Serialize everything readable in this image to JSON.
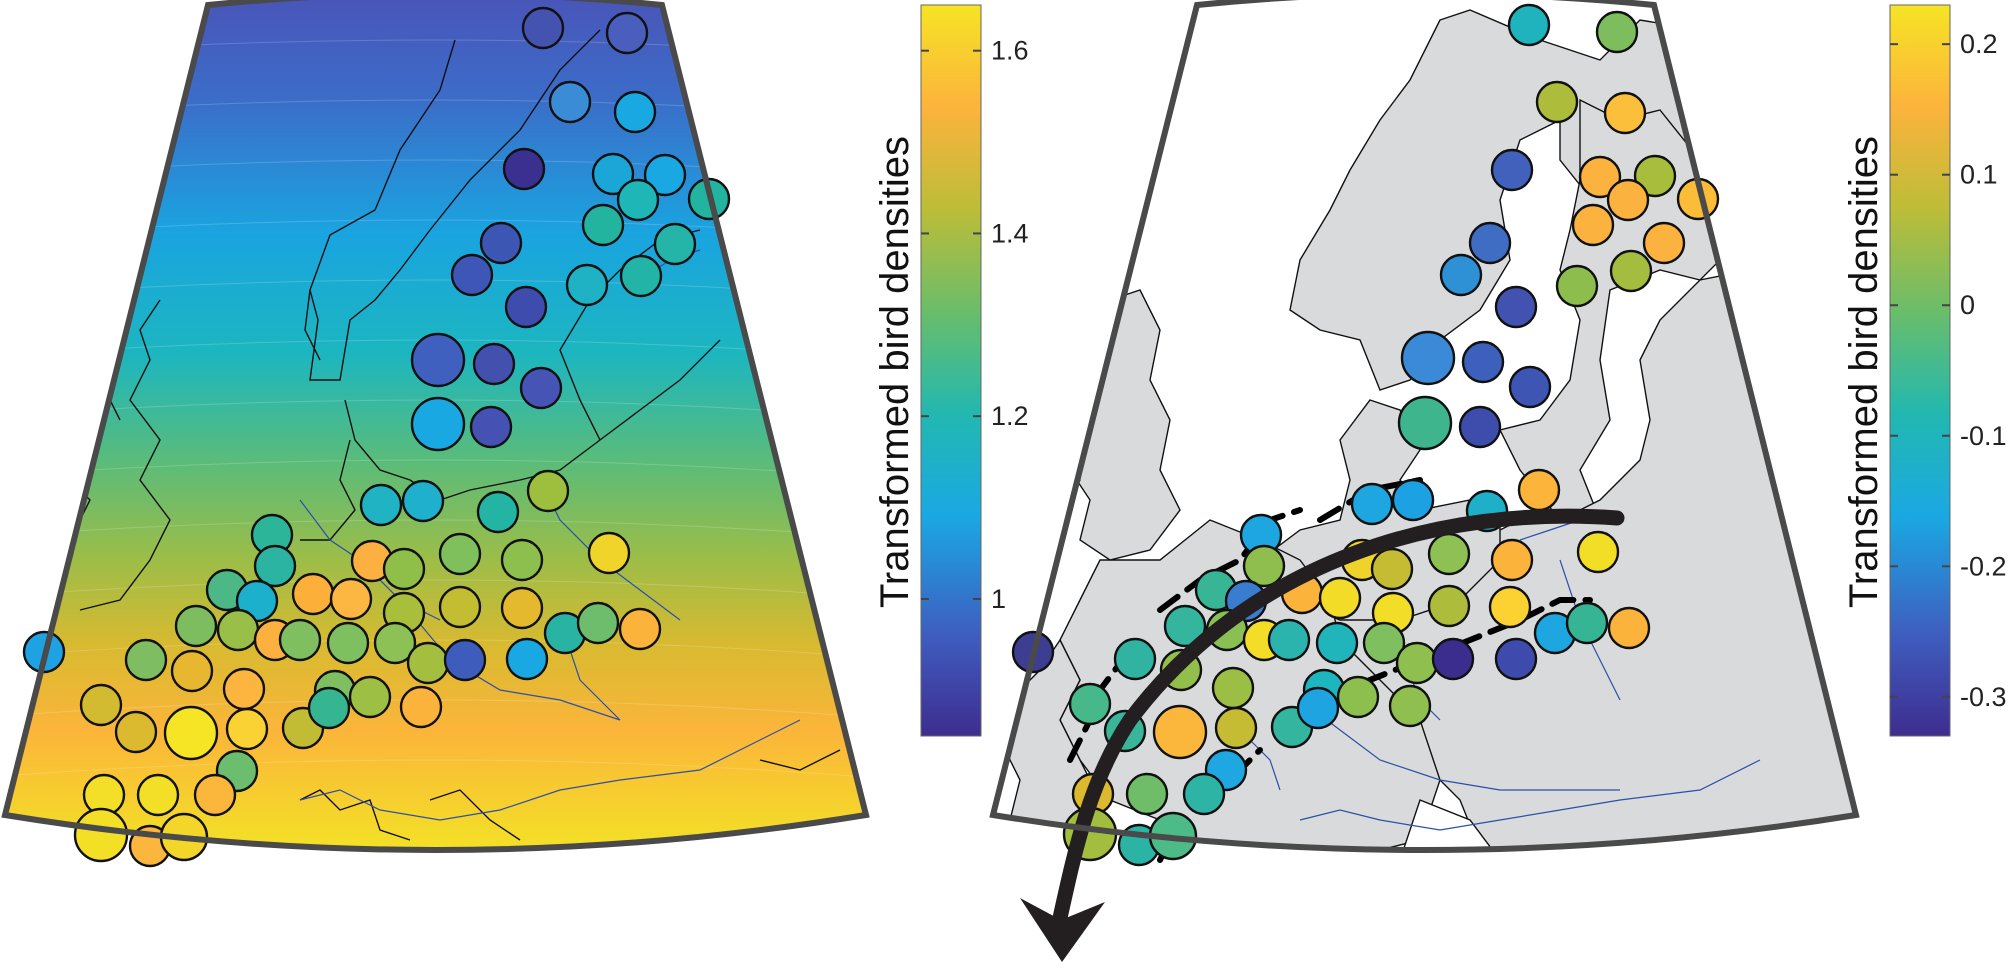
{
  "panels": [
    {
      "id": "interpolated",
      "colorbar": {
        "label": "Transformed bird densities",
        "ticks": [
          "1.6",
          "1.4",
          "1.2",
          "1"
        ],
        "tick_values": [
          1.6,
          1.4,
          1.2,
          1.0
        ],
        "range": [
          0.85,
          1.65
        ],
        "colormap": [
          "#3e2d8f",
          "#3e5ec0",
          "#1aa8e3",
          "#22b8b0",
          "#6abd6a",
          "#bcbd38",
          "#fcb33c",
          "#f6e424"
        ]
      },
      "background": "smooth gradient increasing from north to south",
      "sites": [
        {
          "name": "",
          "value": 0.95,
          "size": "m"
        }
      ]
    },
    {
      "id": "residuals",
      "colorbar": {
        "label": "Transformed bird densities",
        "ticks": [
          "0.2",
          "0.1",
          "0",
          "-0.1",
          "-0.2",
          "-0.3"
        ],
        "tick_values": [
          0.2,
          0.1,
          0.0,
          -0.1,
          -0.2,
          -0.3
        ],
        "range": [
          -0.33,
          0.23
        ],
        "colormap": [
          "#3e2d8f",
          "#3e5ec0",
          "#1aa8e3",
          "#22b8b0",
          "#6abd6a",
          "#bcbd38",
          "#fcb33c",
          "#f6e424"
        ]
      },
      "land_color": "#d9dadb",
      "annotation": "migration direction arrow (NE to SW)"
    }
  ]
}
